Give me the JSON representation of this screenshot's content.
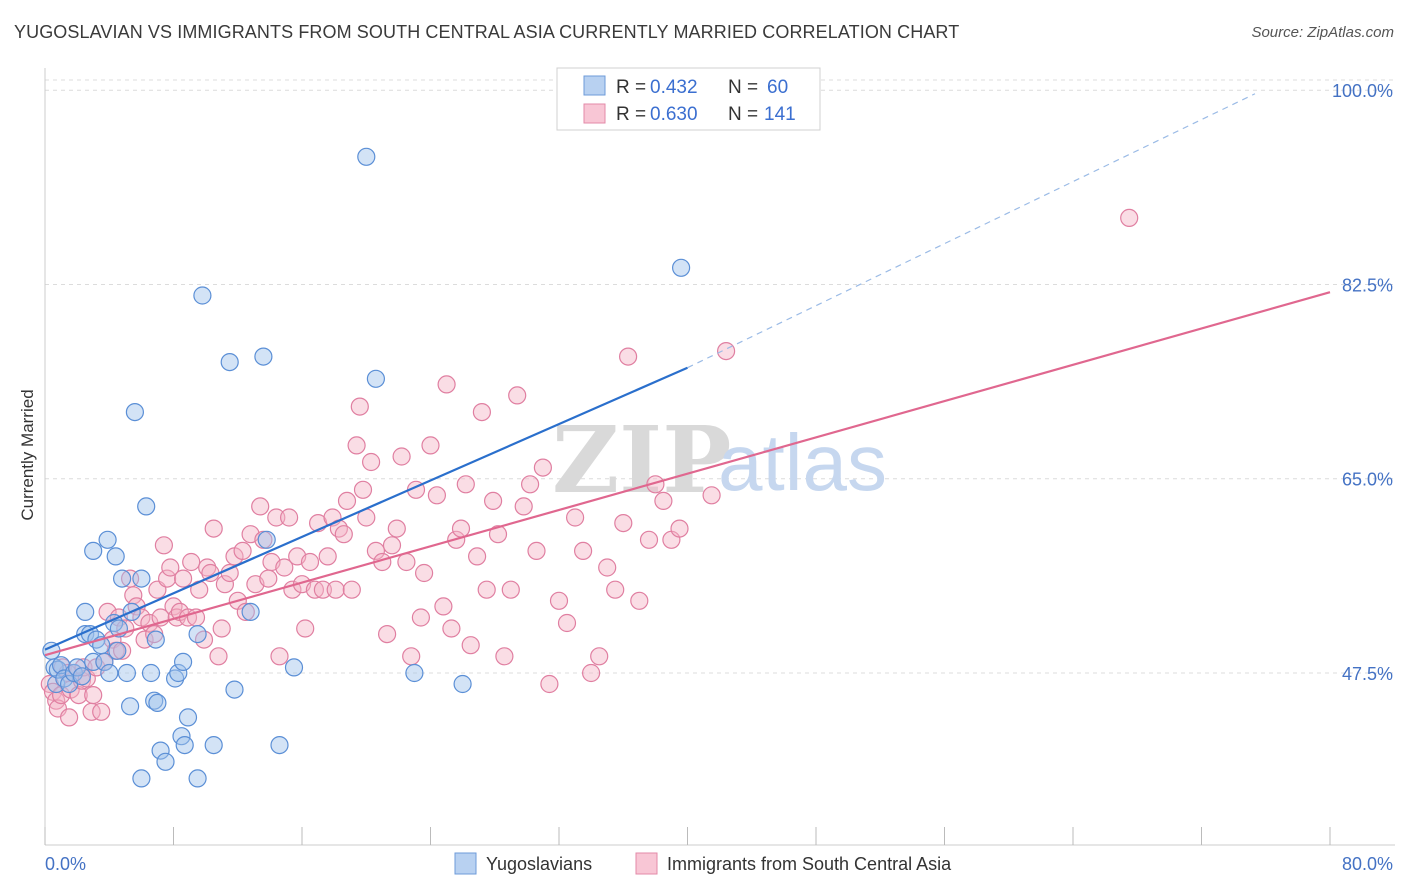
{
  "title": "YUGOSLAVIAN VS IMMIGRANTS FROM SOUTH CENTRAL ASIA CURRENTLY MARRIED CORRELATION CHART",
  "source": "Source: ZipAtlas.com",
  "watermark": {
    "zip": "ZIP",
    "atlas": "atlas"
  },
  "colors": {
    "blue": "#9ec1ec",
    "blue_stroke": "#5b8fd6",
    "blue_line": "#2a6fcc",
    "pink": "#f4b3c6",
    "pink_stroke": "#e07fa1",
    "pink_line": "#e0678f",
    "grid": "#dcdcdc",
    "axis_label": "#4472c4"
  },
  "legend_top": {
    "rows": [
      {
        "r_label": "R =",
        "r_value": "0.432",
        "n_label": "N =",
        "n_value": "60"
      },
      {
        "r_label": "R =",
        "r_value": "0.630",
        "n_label": "N =",
        "n_value": "141"
      }
    ]
  },
  "chart_data": {
    "type": "scatter",
    "title": "YUGOSLAVIAN VS IMMIGRANTS FROM SOUTH CENTRAL ASIA CURRENTLY MARRIED CORRELATION CHART",
    "xlabel": "",
    "ylabel": "Currently Married",
    "xlim": [
      0,
      80
    ],
    "ylim": [
      32,
      102
    ],
    "x_tick_labels": [
      "0.0%",
      "80.0%"
    ],
    "y_ticks": [
      47.5,
      65.0,
      82.5,
      100.0
    ],
    "y_tick_labels": [
      "47.5%",
      "65.0%",
      "82.5%",
      "100.0%"
    ],
    "grid": true,
    "legend_placement": "bottom-center",
    "series": [
      {
        "name": "Yugoslavians",
        "R": 0.432,
        "N": 60,
        "trend": {
          "x0": 0,
          "y0": 49.6,
          "x1": 40,
          "y1": 75.0,
          "dashed_to_x": 80,
          "dashed_to_y": 100.4
        },
        "points": [
          [
            0.4,
            49.5
          ],
          [
            0.6,
            48.0
          ],
          [
            0.7,
            46.5
          ],
          [
            0.8,
            47.8
          ],
          [
            1.0,
            48.2
          ],
          [
            1.2,
            47.0
          ],
          [
            1.5,
            46.5
          ],
          [
            1.8,
            47.5
          ],
          [
            2.0,
            48.0
          ],
          [
            2.3,
            47.2
          ],
          [
            2.5,
            51.0
          ],
          [
            2.5,
            53.0
          ],
          [
            2.8,
            51.0
          ],
          [
            3.0,
            48.5
          ],
          [
            3.0,
            58.5
          ],
          [
            3.2,
            50.5
          ],
          [
            3.5,
            50.0
          ],
          [
            3.7,
            48.5
          ],
          [
            3.9,
            59.5
          ],
          [
            4.0,
            47.5
          ],
          [
            4.3,
            52.0
          ],
          [
            4.4,
            58.0
          ],
          [
            4.5,
            49.5
          ],
          [
            4.6,
            51.5
          ],
          [
            4.8,
            56.0
          ],
          [
            5.1,
            47.5
          ],
          [
            5.3,
            44.5
          ],
          [
            5.4,
            53.0
          ],
          [
            5.6,
            71.0
          ],
          [
            6.0,
            38.0
          ],
          [
            6.0,
            56.0
          ],
          [
            6.3,
            62.5
          ],
          [
            6.6,
            47.5
          ],
          [
            6.8,
            45.0
          ],
          [
            6.9,
            50.5
          ],
          [
            7.0,
            44.8
          ],
          [
            7.2,
            40.5
          ],
          [
            7.5,
            39.5
          ],
          [
            8.1,
            47.0
          ],
          [
            8.3,
            47.5
          ],
          [
            8.5,
            41.8
          ],
          [
            8.6,
            48.5
          ],
          [
            8.7,
            41.0
          ],
          [
            8.9,
            43.5
          ],
          [
            9.5,
            38.0
          ],
          [
            9.5,
            51.0
          ],
          [
            9.8,
            81.5
          ],
          [
            10.5,
            41.0
          ],
          [
            11.5,
            75.5
          ],
          [
            11.8,
            46.0
          ],
          [
            12.8,
            53.0
          ],
          [
            13.6,
            76.0
          ],
          [
            13.8,
            59.5
          ],
          [
            14.6,
            41.0
          ],
          [
            15.5,
            48.0
          ],
          [
            20.0,
            94.0
          ],
          [
            20.6,
            74.0
          ],
          [
            23.0,
            47.5
          ],
          [
            26.0,
            46.5
          ],
          [
            39.6,
            84.0
          ]
        ]
      },
      {
        "name": "Immigrants from South Central Asia",
        "R": 0.63,
        "N": 141,
        "trend": {
          "x0": 0,
          "y0": 49.1,
          "x1": 80,
          "y1": 81.8
        },
        "points": [
          [
            0.3,
            46.5
          ],
          [
            0.5,
            45.8
          ],
          [
            0.7,
            45.0
          ],
          [
            0.8,
            44.3
          ],
          [
            1.0,
            45.5
          ],
          [
            1.1,
            48.0
          ],
          [
            1.4,
            47.5
          ],
          [
            1.5,
            43.5
          ],
          [
            1.6,
            46.0
          ],
          [
            1.8,
            47.5
          ],
          [
            2.1,
            45.5
          ],
          [
            2.3,
            46.8
          ],
          [
            2.4,
            48.0
          ],
          [
            2.6,
            47.0
          ],
          [
            2.9,
            44.0
          ],
          [
            3.0,
            45.5
          ],
          [
            3.2,
            48.0
          ],
          [
            3.5,
            44.0
          ],
          [
            3.7,
            48.5
          ],
          [
            3.9,
            53.0
          ],
          [
            4.2,
            50.5
          ],
          [
            4.4,
            49.5
          ],
          [
            4.6,
            52.5
          ],
          [
            4.8,
            49.5
          ],
          [
            5.0,
            51.5
          ],
          [
            5.3,
            56.0
          ],
          [
            5.5,
            54.5
          ],
          [
            5.7,
            53.5
          ],
          [
            6.0,
            52.5
          ],
          [
            6.2,
            50.5
          ],
          [
            6.5,
            52.0
          ],
          [
            6.8,
            51.0
          ],
          [
            7.0,
            55.0
          ],
          [
            7.2,
            52.5
          ],
          [
            7.4,
            59.0
          ],
          [
            7.6,
            56.0
          ],
          [
            7.8,
            57.0
          ],
          [
            8.0,
            53.5
          ],
          [
            8.2,
            52.5
          ],
          [
            8.4,
            53.0
          ],
          [
            8.6,
            56.0
          ],
          [
            8.9,
            52.5
          ],
          [
            9.1,
            57.5
          ],
          [
            9.4,
            52.5
          ],
          [
            9.6,
            55.0
          ],
          [
            9.9,
            50.5
          ],
          [
            10.1,
            57.0
          ],
          [
            10.3,
            56.5
          ],
          [
            10.5,
            60.5
          ],
          [
            10.8,
            49.0
          ],
          [
            11.0,
            51.5
          ],
          [
            11.2,
            55.5
          ],
          [
            11.5,
            56.5
          ],
          [
            11.8,
            58.0
          ],
          [
            12.0,
            54.0
          ],
          [
            12.3,
            58.5
          ],
          [
            12.5,
            53.0
          ],
          [
            12.8,
            60.0
          ],
          [
            13.1,
            55.5
          ],
          [
            13.4,
            62.5
          ],
          [
            13.6,
            59.5
          ],
          [
            13.9,
            56.0
          ],
          [
            14.1,
            57.5
          ],
          [
            14.4,
            61.5
          ],
          [
            14.6,
            49.0
          ],
          [
            14.9,
            57.0
          ],
          [
            15.2,
            61.5
          ],
          [
            15.4,
            55.0
          ],
          [
            15.7,
            58.0
          ],
          [
            16.0,
            55.5
          ],
          [
            16.2,
            51.5
          ],
          [
            16.5,
            57.5
          ],
          [
            16.8,
            55.0
          ],
          [
            17.0,
            61.0
          ],
          [
            17.3,
            55.0
          ],
          [
            17.6,
            58.0
          ],
          [
            17.9,
            61.5
          ],
          [
            18.1,
            55.0
          ],
          [
            18.3,
            60.5
          ],
          [
            18.6,
            60.0
          ],
          [
            18.8,
            63.0
          ],
          [
            19.1,
            55.0
          ],
          [
            19.4,
            68.0
          ],
          [
            19.6,
            71.5
          ],
          [
            19.8,
            64.0
          ],
          [
            20.0,
            61.5
          ],
          [
            20.3,
            66.5
          ],
          [
            20.6,
            58.5
          ],
          [
            21.0,
            57.5
          ],
          [
            21.3,
            51.0
          ],
          [
            21.6,
            59.0
          ],
          [
            21.9,
            60.5
          ],
          [
            22.2,
            67.0
          ],
          [
            22.5,
            57.5
          ],
          [
            22.8,
            49.0
          ],
          [
            23.1,
            64.0
          ],
          [
            23.4,
            52.5
          ],
          [
            23.6,
            56.5
          ],
          [
            24.0,
            68.0
          ],
          [
            24.4,
            63.5
          ],
          [
            24.8,
            53.5
          ],
          [
            25.0,
            73.5
          ],
          [
            25.3,
            51.5
          ],
          [
            25.6,
            59.5
          ],
          [
            25.9,
            60.5
          ],
          [
            26.2,
            64.5
          ],
          [
            26.5,
            50.0
          ],
          [
            26.9,
            58.0
          ],
          [
            27.2,
            71.0
          ],
          [
            27.5,
            55.0
          ],
          [
            27.9,
            63.0
          ],
          [
            28.2,
            60.0
          ],
          [
            28.6,
            49.0
          ],
          [
            29.0,
            55.0
          ],
          [
            29.4,
            72.5
          ],
          [
            29.8,
            62.5
          ],
          [
            30.2,
            64.5
          ],
          [
            30.6,
            58.5
          ],
          [
            31.0,
            66.0
          ],
          [
            31.4,
            46.5
          ],
          [
            32.0,
            54.0
          ],
          [
            32.5,
            52.0
          ],
          [
            33.0,
            61.5
          ],
          [
            33.5,
            58.5
          ],
          [
            34.0,
            47.5
          ],
          [
            34.5,
            49.0
          ],
          [
            35.0,
            57.0
          ],
          [
            35.5,
            55.0
          ],
          [
            36.0,
            61.0
          ],
          [
            36.3,
            76.0
          ],
          [
            37.0,
            54.0
          ],
          [
            37.6,
            59.5
          ],
          [
            38.0,
            64.5
          ],
          [
            38.5,
            63.0
          ],
          [
            39.0,
            59.5
          ],
          [
            39.5,
            60.5
          ],
          [
            41.5,
            63.5
          ],
          [
            42.4,
            76.5
          ],
          [
            67.5,
            88.5
          ]
        ]
      }
    ]
  },
  "bottom_legend": [
    {
      "label": "Yugoslavians"
    },
    {
      "label": "Immigrants from South Central Asia"
    }
  ]
}
